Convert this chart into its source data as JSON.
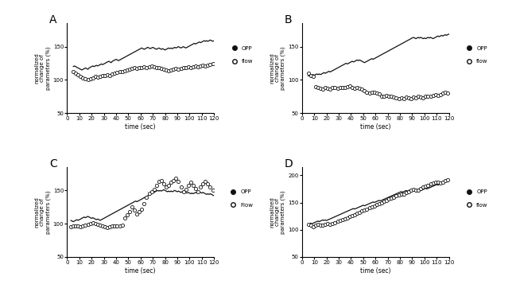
{
  "panels": [
    "A",
    "B",
    "C",
    "D"
  ],
  "ylabel": "normalized\nchange of\nparameters (%)",
  "xlabel": "time (sec)",
  "xticks": [
    0,
    10,
    20,
    30,
    40,
    50,
    60,
    70,
    80,
    90,
    100,
    110,
    120
  ],
  "A": {
    "opp_x": [
      5,
      6,
      7,
      8,
      9,
      10,
      11,
      12,
      13,
      14,
      15,
      16,
      17,
      18,
      19,
      20,
      21,
      22,
      23,
      24,
      25,
      26,
      27,
      28,
      29,
      30,
      31,
      32,
      33,
      34,
      35,
      36,
      37,
      38,
      39,
      40,
      41,
      42,
      43,
      44,
      45,
      46,
      47,
      48,
      49,
      50,
      51,
      52,
      53,
      54,
      55,
      56,
      57,
      58,
      59,
      60,
      61,
      62,
      63,
      64,
      65,
      66,
      67,
      68,
      69,
      70,
      71,
      72,
      73,
      74,
      75,
      76,
      77,
      78,
      79,
      80,
      81,
      82,
      83,
      84,
      85,
      86,
      87,
      88,
      89,
      90,
      91,
      92,
      93,
      94,
      95,
      96,
      97,
      98,
      99,
      100,
      101,
      102,
      103,
      104,
      105,
      106,
      107,
      108,
      109,
      110,
      111,
      112,
      113,
      114,
      115,
      116,
      117,
      118,
      119,
      120
    ],
    "opp_y": [
      120,
      121,
      120,
      119,
      118,
      117,
      116,
      115,
      116,
      117,
      118,
      117,
      116,
      118,
      119,
      120,
      121,
      120,
      121,
      122,
      121,
      122,
      123,
      124,
      123,
      124,
      125,
      126,
      127,
      128,
      127,
      126,
      128,
      129,
      130,
      131,
      130,
      129,
      130,
      131,
      132,
      133,
      134,
      135,
      136,
      137,
      138,
      139,
      140,
      141,
      142,
      143,
      144,
      145,
      146,
      147,
      148,
      147,
      146,
      147,
      148,
      149,
      148,
      147,
      148,
      149,
      148,
      147,
      146,
      147,
      148,
      147,
      146,
      147,
      146,
      145,
      146,
      147,
      148,
      147,
      148,
      147,
      148,
      149,
      148,
      149,
      150,
      149,
      148,
      149,
      150,
      149,
      148,
      149,
      150,
      151,
      152,
      153,
      154,
      155,
      154,
      155,
      156,
      157,
      156,
      157,
      158,
      159,
      158,
      159,
      158,
      159,
      160,
      159,
      158,
      159
    ],
    "flow_x": [
      5,
      7,
      9,
      11,
      13,
      15,
      17,
      19,
      21,
      23,
      25,
      27,
      29,
      31,
      33,
      35,
      37,
      39,
      41,
      43,
      45,
      47,
      49,
      51,
      53,
      55,
      57,
      59,
      61,
      63,
      65,
      67,
      69,
      71,
      73,
      75,
      77,
      79,
      81,
      83,
      85,
      87,
      89,
      91,
      93,
      95,
      97,
      99,
      101,
      103,
      105,
      107,
      109,
      111,
      113,
      115,
      117,
      119
    ],
    "flow_y": [
      112,
      110,
      108,
      105,
      103,
      102,
      100,
      102,
      103,
      105,
      104,
      105,
      106,
      107,
      108,
      107,
      109,
      110,
      111,
      112,
      113,
      114,
      115,
      116,
      117,
      118,
      117,
      118,
      119,
      120,
      119,
      120,
      121,
      120,
      119,
      118,
      117,
      116,
      115,
      114,
      115,
      116,
      117,
      116,
      117,
      118,
      119,
      120,
      119,
      120,
      121,
      120,
      121,
      122,
      121,
      122,
      123,
      124
    ]
  },
  "B": {
    "opp_x": [
      5,
      6,
      7,
      8,
      9,
      10,
      11,
      12,
      13,
      14,
      15,
      16,
      17,
      18,
      19,
      20,
      21,
      22,
      23,
      24,
      25,
      26,
      27,
      28,
      29,
      30,
      31,
      32,
      33,
      34,
      35,
      36,
      37,
      38,
      39,
      40,
      41,
      42,
      43,
      44,
      45,
      46,
      47,
      48,
      49,
      50,
      51,
      52,
      53,
      54,
      55,
      56,
      57,
      58,
      59,
      60,
      61,
      62,
      63,
      64,
      65,
      66,
      67,
      68,
      69,
      70,
      71,
      72,
      73,
      74,
      75,
      76,
      77,
      78,
      79,
      80,
      81,
      82,
      83,
      84,
      85,
      86,
      87,
      88,
      89,
      90,
      91,
      92,
      93,
      94,
      95,
      96,
      97,
      98,
      99,
      100,
      101,
      102,
      103,
      104,
      105,
      106,
      107,
      108,
      109,
      110,
      111,
      112,
      113,
      114,
      115,
      116,
      117,
      118,
      119,
      120
    ],
    "opp_y": [
      106,
      107,
      106,
      107,
      108,
      107,
      108,
      109,
      108,
      109,
      108,
      109,
      110,
      111,
      110,
      111,
      112,
      113,
      112,
      113,
      114,
      115,
      116,
      117,
      118,
      119,
      120,
      121,
      122,
      123,
      124,
      125,
      124,
      125,
      126,
      127,
      128,
      127,
      128,
      129,
      130,
      129,
      130,
      129,
      128,
      127,
      126,
      127,
      128,
      129,
      130,
      131,
      132,
      131,
      132,
      133,
      134,
      135,
      136,
      137,
      138,
      139,
      140,
      141,
      142,
      143,
      144,
      145,
      146,
      147,
      148,
      149,
      150,
      151,
      152,
      153,
      154,
      155,
      156,
      157,
      158,
      159,
      160,
      161,
      162,
      163,
      164,
      163,
      162,
      163,
      164,
      163,
      164,
      163,
      162,
      163,
      162,
      163,
      164,
      163,
      164,
      163,
      162,
      163,
      164,
      165,
      166,
      165,
      166,
      167,
      166,
      167,
      168,
      167,
      168,
      169
    ],
    "flow_x": [
      5,
      7,
      9,
      11,
      13,
      15,
      17,
      19,
      21,
      23,
      25,
      27,
      29,
      31,
      33,
      35,
      37,
      39,
      41,
      43,
      45,
      47,
      49,
      51,
      53,
      55,
      57,
      59,
      61,
      63,
      65,
      67,
      69,
      71,
      73,
      75,
      77,
      79,
      81,
      83,
      85,
      87,
      89,
      91,
      93,
      95,
      97,
      99,
      101,
      103,
      105,
      107,
      109,
      111,
      113,
      115,
      117,
      119
    ],
    "flow_y": [
      110,
      107,
      105,
      90,
      88,
      87,
      86,
      88,
      87,
      86,
      88,
      89,
      87,
      88,
      89,
      88,
      90,
      91,
      88,
      87,
      88,
      87,
      86,
      84,
      82,
      80,
      82,
      81,
      80,
      79,
      76,
      75,
      77,
      76,
      75,
      74,
      73,
      72,
      73,
      72,
      74,
      73,
      72,
      74,
      73,
      75,
      74,
      73,
      75,
      76,
      75,
      77,
      78,
      77,
      78,
      80,
      81,
      80
    ]
  },
  "C": {
    "opp_x": [
      3,
      4,
      5,
      6,
      7,
      8,
      9,
      10,
      11,
      12,
      13,
      14,
      15,
      16,
      17,
      18,
      19,
      20,
      21,
      22,
      23,
      24,
      25,
      26,
      27,
      28,
      29,
      30,
      31,
      32,
      33,
      34,
      35,
      36,
      37,
      38,
      39,
      40,
      41,
      42,
      43,
      44,
      45,
      46,
      47,
      48,
      49,
      50,
      51,
      52,
      53,
      54,
      55,
      56,
      57,
      58,
      59,
      60,
      61,
      62,
      63,
      64,
      65,
      66,
      67,
      68,
      69,
      70,
      71,
      72,
      73,
      74,
      75,
      76,
      77,
      78,
      79,
      80,
      81,
      82,
      83,
      84,
      85,
      86,
      87,
      88,
      89,
      90,
      91,
      92,
      93,
      94,
      95,
      96,
      97,
      98,
      99,
      100,
      101,
      102,
      103,
      104,
      105,
      106,
      107,
      108,
      109,
      110,
      111,
      112,
      113,
      114,
      115,
      116,
      117,
      118,
      119,
      120
    ],
    "opp_y": [
      105,
      104,
      103,
      104,
      105,
      106,
      105,
      106,
      107,
      108,
      109,
      110,
      109,
      110,
      111,
      110,
      109,
      108,
      109,
      108,
      107,
      106,
      107,
      106,
      105,
      106,
      107,
      108,
      109,
      110,
      111,
      112,
      113,
      114,
      115,
      116,
      117,
      118,
      119,
      120,
      121,
      122,
      123,
      124,
      125,
      126,
      127,
      128,
      129,
      130,
      131,
      132,
      133,
      134,
      133,
      134,
      135,
      136,
      137,
      138,
      139,
      140,
      141,
      142,
      143,
      144,
      145,
      146,
      147,
      148,
      149,
      150,
      149,
      150,
      149,
      150,
      151,
      150,
      149,
      148,
      149,
      148,
      149,
      148,
      149,
      150,
      149,
      148,
      149,
      148,
      147,
      148,
      149,
      148,
      147,
      146,
      147,
      146,
      145,
      146,
      145,
      146,
      147,
      146,
      147,
      148,
      147,
      146,
      147,
      146,
      145,
      144,
      145,
      144,
      145,
      144,
      143,
      142
    ],
    "flow_x": [
      3,
      5,
      7,
      9,
      11,
      13,
      15,
      17,
      19,
      21,
      23,
      25,
      27,
      29,
      31,
      33,
      35,
      37,
      39,
      41,
      43,
      45,
      47,
      49,
      51,
      53,
      55,
      57,
      59,
      61,
      63,
      65,
      67,
      69,
      71,
      73,
      75,
      77,
      79,
      81,
      83,
      85,
      87,
      89,
      91,
      93,
      95,
      97,
      99,
      101,
      103,
      105,
      107,
      109,
      111,
      113,
      115,
      117,
      119
    ],
    "flow_y": [
      95,
      96,
      97,
      96,
      95,
      97,
      98,
      99,
      100,
      101,
      100,
      99,
      98,
      97,
      95,
      94,
      95,
      96,
      97,
      96,
      97,
      98,
      109,
      113,
      118,
      125,
      120,
      115,
      118,
      122,
      130,
      140,
      145,
      148,
      152,
      158,
      163,
      165,
      160,
      155,
      158,
      162,
      165,
      168,
      163,
      155,
      148,
      152,
      158,
      162,
      158,
      153,
      148,
      155,
      160,
      163,
      160,
      155,
      150
    ]
  },
  "D": {
    "opp_x": [
      5,
      6,
      7,
      8,
      9,
      10,
      11,
      12,
      13,
      14,
      15,
      16,
      17,
      18,
      19,
      20,
      21,
      22,
      23,
      24,
      25,
      26,
      27,
      28,
      29,
      30,
      31,
      32,
      33,
      34,
      35,
      36,
      37,
      38,
      39,
      40,
      41,
      42,
      43,
      44,
      45,
      46,
      47,
      48,
      49,
      50,
      51,
      52,
      53,
      54,
      55,
      56,
      57,
      58,
      59,
      60,
      61,
      62,
      63,
      64,
      65,
      66,
      67,
      68,
      69,
      70,
      71,
      72,
      73,
      74,
      75,
      76,
      77,
      78,
      79,
      80,
      81,
      82,
      83,
      84,
      85,
      86,
      87,
      88,
      89,
      90,
      91,
      92,
      93,
      94,
      95,
      96,
      97,
      98,
      99,
      100,
      101,
      102,
      103,
      104,
      105,
      106,
      107,
      108,
      109,
      110,
      111,
      112,
      113,
      114,
      115,
      116,
      117,
      118,
      119,
      120
    ],
    "opp_y": [
      110,
      111,
      112,
      111,
      112,
      113,
      114,
      115,
      116,
      115,
      116,
      117,
      118,
      117,
      118,
      117,
      118,
      119,
      120,
      121,
      122,
      123,
      124,
      125,
      126,
      127,
      128,
      129,
      130,
      131,
      132,
      133,
      134,
      135,
      136,
      137,
      138,
      139,
      138,
      139,
      140,
      141,
      142,
      143,
      144,
      145,
      144,
      145,
      146,
      147,
      148,
      149,
      150,
      151,
      150,
      151,
      152,
      153,
      154,
      153,
      154,
      155,
      156,
      157,
      158,
      159,
      160,
      161,
      162,
      163,
      164,
      165,
      166,
      167,
      168,
      169,
      170,
      169,
      170,
      171,
      172,
      171,
      172,
      173,
      172,
      171,
      172,
      173,
      172,
      171,
      172,
      171,
      172,
      173,
      174,
      175,
      176,
      175,
      176,
      177,
      178,
      179,
      180,
      181,
      182,
      183,
      182,
      183,
      184,
      185,
      186,
      187,
      188,
      189,
      188,
      189
    ],
    "flow_x": [
      5,
      7,
      9,
      11,
      13,
      15,
      17,
      19,
      21,
      23,
      25,
      27,
      29,
      31,
      33,
      35,
      37,
      39,
      41,
      43,
      45,
      47,
      49,
      51,
      53,
      55,
      57,
      59,
      61,
      63,
      65,
      67,
      69,
      71,
      73,
      75,
      77,
      79,
      81,
      83,
      85,
      87,
      89,
      91,
      93,
      95,
      97,
      99,
      101,
      103,
      105,
      107,
      109,
      111,
      113,
      115,
      117,
      119
    ],
    "flow_y": [
      110,
      108,
      106,
      108,
      110,
      109,
      108,
      110,
      111,
      110,
      112,
      113,
      115,
      117,
      118,
      120,
      122,
      124,
      126,
      128,
      130,
      132,
      134,
      136,
      138,
      140,
      142,
      144,
      146,
      148,
      150,
      152,
      154,
      156,
      158,
      160,
      162,
      164,
      165,
      166,
      168,
      170,
      172,
      174,
      173,
      172,
      175,
      178,
      180,
      182,
      184,
      186,
      188,
      187,
      186,
      188,
      190,
      192
    ]
  },
  "background": "#ffffff",
  "opp_color": "#111111",
  "flow_color": "#555555"
}
